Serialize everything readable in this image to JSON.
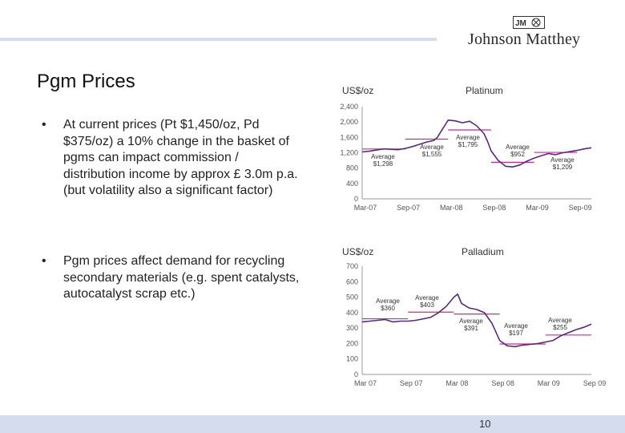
{
  "logo": {
    "mark": "JM",
    "name": "Johnson Matthey"
  },
  "title": "Pgm Prices",
  "bullets": [
    {
      "symbol": "•",
      "text": "At current prices (Pt $1,450/oz, Pd $375/oz) a 10% change in the basket of pgms can impact commission / distribution income by approx £ 3.0m p.a. (but volatility also a significant factor)"
    },
    {
      "symbol": "•",
      "text": "Pgm prices affect demand for recycling secondary materials (e.g. spent catalysts, autocatalyst scrap etc.)"
    }
  ],
  "page_number": "10",
  "colors": {
    "series": "#5a2a78",
    "average": "#c8289a",
    "axis": "#999999",
    "band": "#d4dced"
  },
  "chart_data": [
    {
      "type": "line",
      "title": "Platinum",
      "ylabel": "US$/oz",
      "ylim": [
        0,
        2400
      ],
      "yticks": [
        0,
        400,
        800,
        1200,
        1600,
        2000,
        2400
      ],
      "ytick_labels": [
        "0",
        "400",
        "800",
        "1,200",
        "1,600",
        "2,000",
        "2,400"
      ],
      "xticks": [
        0,
        6,
        12,
        18,
        24,
        30
      ],
      "xtick_labels": [
        "Mar-07",
        "Sep-07",
        "Mar-08",
        "Sep-08",
        "Mar-09",
        "Sep-09"
      ],
      "xlim": [
        0,
        32
      ],
      "series": [
        {
          "name": "Platinum",
          "x": [
            0,
            1,
            2,
            3,
            4,
            5,
            6,
            7,
            8,
            9,
            10,
            10.5,
            11,
            11.5,
            12,
            13,
            14,
            15,
            16,
            17,
            17.5,
            18,
            19,
            20,
            21,
            22,
            23,
            24,
            25,
            26,
            27,
            28,
            29,
            30,
            31,
            32
          ],
          "values": [
            1220,
            1240,
            1270,
            1300,
            1290,
            1280,
            1310,
            1360,
            1420,
            1480,
            1520,
            1600,
            1750,
            1900,
            2050,
            2030,
            1980,
            2020,
            1900,
            1700,
            1500,
            1250,
            1000,
            850,
            830,
            880,
            980,
            1060,
            1120,
            1180,
            1150,
            1200,
            1230,
            1260,
            1300,
            1330
          ]
        }
      ],
      "averages": [
        {
          "label": "Average",
          "value_label": "$1,298",
          "value": 1298,
          "x_range": [
            0,
            6
          ]
        },
        {
          "label": "Average",
          "value_label": "$1,555",
          "value": 1555,
          "x_range": [
            6,
            12
          ]
        },
        {
          "label": "Average",
          "value_label": "$1,795",
          "value": 1795,
          "x_range": [
            12,
            18
          ]
        },
        {
          "label": "Average",
          "value_label": "$952",
          "value": 952,
          "x_range": [
            18,
            24
          ]
        },
        {
          "label": "Average",
          "value_label": "$1,209",
          "value": 1209,
          "x_range": [
            24,
            30
          ]
        }
      ]
    },
    {
      "type": "line",
      "title": "Palladium",
      "ylabel": "US$/oz",
      "ylim": [
        0,
        700
      ],
      "yticks": [
        0,
        100,
        200,
        300,
        400,
        500,
        600,
        700
      ],
      "ytick_labels": [
        "0",
        "100",
        "200",
        "300",
        "400",
        "500",
        "600",
        "700"
      ],
      "xticks": [
        0,
        6,
        12,
        18,
        24,
        30
      ],
      "xtick_labels": [
        "Mar 07",
        "Sep 07",
        "Mar 08",
        "Sep 08",
        "Mar 09",
        "Sep 09"
      ],
      "xlim": [
        0,
        30
      ],
      "series": [
        {
          "name": "Palladium",
          "x": [
            0,
            1,
            2,
            3,
            4,
            5,
            6,
            7,
            8,
            9,
            10,
            11,
            12,
            12.5,
            13,
            14,
            15,
            16,
            17,
            18,
            19,
            20,
            21,
            22,
            23,
            24,
            25,
            26,
            27,
            28,
            29,
            30
          ],
          "values": [
            340,
            345,
            350,
            355,
            340,
            345,
            345,
            350,
            360,
            370,
            400,
            440,
            500,
            520,
            460,
            430,
            420,
            400,
            330,
            220,
            185,
            180,
            190,
            195,
            200,
            210,
            220,
            250,
            270,
            290,
            305,
            325
          ]
        }
      ],
      "averages": [
        {
          "label": "Average",
          "value_label": "$360",
          "value": 360,
          "x_range": [
            0,
            6
          ]
        },
        {
          "label": "Average",
          "value_label": "$403",
          "value": 403,
          "x_range": [
            6,
            12
          ]
        },
        {
          "label": "Average",
          "value_label": "$391",
          "value": 391,
          "x_range": [
            12,
            18
          ]
        },
        {
          "label": "Average",
          "value_label": "$197",
          "value": 197,
          "x_range": [
            18,
            24
          ]
        },
        {
          "label": "Average",
          "value_label": "$255",
          "value": 255,
          "x_range": [
            24,
            30
          ]
        }
      ]
    }
  ]
}
